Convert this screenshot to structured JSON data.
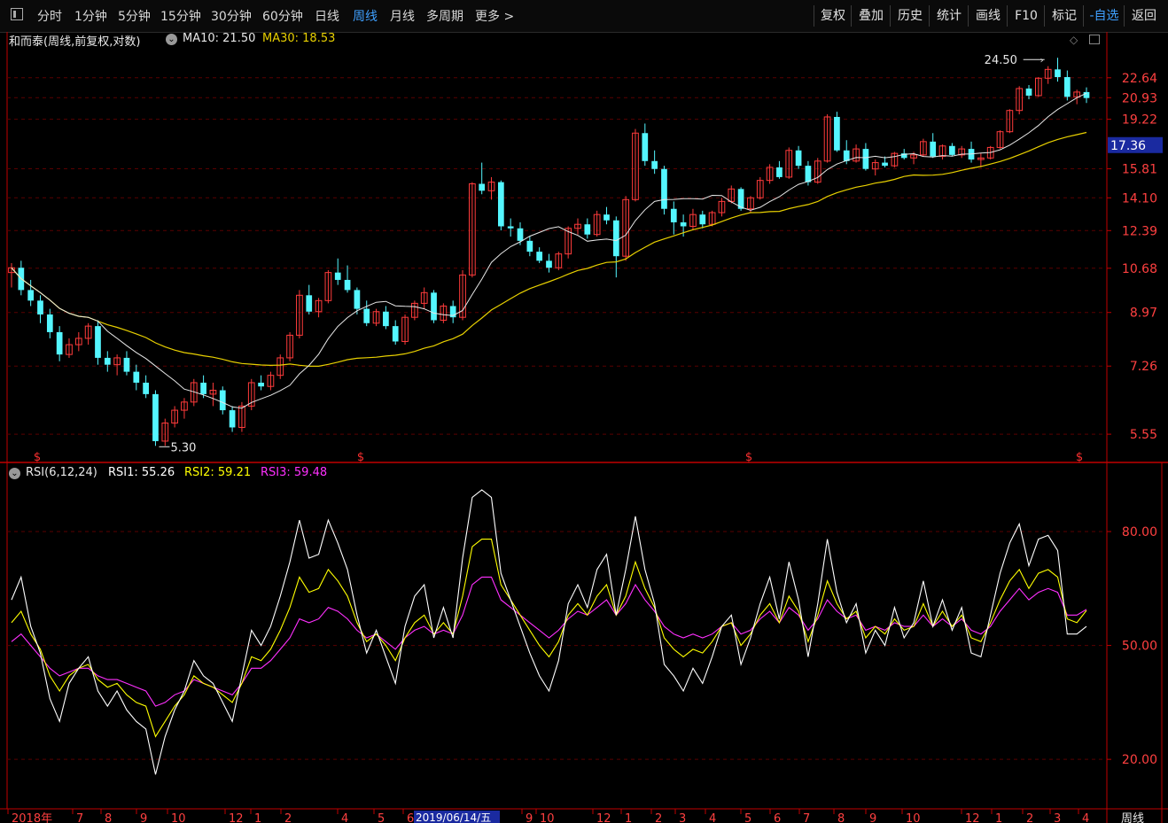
{
  "toolbar": {
    "periods": [
      "分时",
      "1分钟",
      "5分钟",
      "15分钟",
      "30分钟",
      "60分钟",
      "日线",
      "周线",
      "月线",
      "多周期",
      "更多 >"
    ],
    "active": "周线",
    "right": [
      "复权",
      "叠加",
      "历史",
      "统计",
      "画线",
      "F10",
      "标记",
      "-自选",
      "返回"
    ],
    "selected_right": "-自选"
  },
  "price_panel": {
    "title": "和而泰(周线,前复权,对数)",
    "ma10_label": "MA10: 21.50",
    "ma30_label": "MA30: 18.53",
    "current_price": "17.36",
    "high_label": "24.50",
    "low_label": "5.30",
    "marker_glyph": "$"
  },
  "rsi_panel": {
    "title": "RSI(6,12,24)",
    "rsi1_label": "RSI1: 55.26",
    "rsi2_label": "RSI2: 59.21",
    "rsi3_label": "RSI3: 59.48"
  },
  "x_axis": {
    "ticks": [
      "2018年",
      "7",
      "8",
      "9",
      "10",
      "12",
      "1",
      "2",
      "4",
      "5",
      "6",
      "9",
      "10",
      "12",
      "1",
      "2",
      "3",
      "4",
      "5",
      "6",
      "7",
      "8",
      "9",
      "10",
      "12",
      "1",
      "2",
      "3",
      "4"
    ],
    "cursor_label": "2019/06/14/五",
    "period_label": "周线"
  },
  "colors": {
    "up": "#ff3b3b",
    "down": "#54f6ff",
    "ma10": "#e8e8e8",
    "ma30": "#e8d000",
    "rsi1": "#ffffff",
    "rsi2": "#ffff00",
    "rsi3": "#ff30ff",
    "axis": "#c00000",
    "grid": "#5a0000"
  },
  "chart_data": [
    {
      "type": "candlestick",
      "title": "和而泰(周线,前复权,对数)",
      "scale": "log",
      "y_ticks": [
        22.64,
        20.93,
        19.22,
        17.36,
        15.81,
        14.1,
        12.39,
        10.68,
        8.97,
        7.26,
        5.55
      ],
      "ylim": [
        5.25,
        25.3
      ],
      "candles": [
        [
          10.5,
          10.9,
          9.9,
          10.7
        ],
        [
          10.7,
          11.0,
          9.6,
          9.8
        ],
        [
          9.8,
          10.2,
          9.2,
          9.4
        ],
        [
          9.4,
          9.6,
          8.6,
          8.9
        ],
        [
          8.9,
          9.1,
          8.1,
          8.3
        ],
        [
          8.3,
          8.5,
          7.4,
          7.6
        ],
        [
          7.6,
          8.1,
          7.5,
          7.9
        ],
        [
          7.9,
          8.3,
          7.7,
          8.1
        ],
        [
          8.1,
          8.6,
          7.9,
          8.5
        ],
        [
          8.5,
          8.7,
          7.3,
          7.5
        ],
        [
          7.5,
          7.7,
          7.1,
          7.3
        ],
        [
          7.3,
          7.6,
          7.0,
          7.5
        ],
        [
          7.5,
          7.7,
          7.0,
          7.1
        ],
        [
          7.1,
          7.3,
          6.6,
          6.8
        ],
        [
          6.8,
          7.0,
          6.4,
          6.5
        ],
        [
          6.5,
          6.6,
          5.3,
          5.4
        ],
        [
          5.4,
          5.9,
          5.3,
          5.8
        ],
        [
          5.8,
          6.2,
          5.7,
          6.1
        ],
        [
          6.1,
          6.4,
          5.9,
          6.3
        ],
        [
          6.3,
          6.9,
          6.2,
          6.8
        ],
        [
          6.8,
          7.0,
          6.4,
          6.5
        ],
        [
          6.5,
          6.8,
          6.2,
          6.6
        ],
        [
          6.6,
          6.7,
          6.0,
          6.1
        ],
        [
          6.1,
          6.2,
          5.6,
          5.7
        ],
        [
          5.7,
          6.3,
          5.6,
          6.2
        ],
        [
          6.2,
          6.9,
          6.1,
          6.8
        ],
        [
          6.8,
          7.0,
          6.6,
          6.7
        ],
        [
          6.7,
          7.1,
          6.6,
          7.0
        ],
        [
          7.0,
          7.6,
          6.9,
          7.5
        ],
        [
          7.5,
          8.3,
          7.4,
          8.2
        ],
        [
          8.2,
          9.8,
          8.1,
          9.6
        ],
        [
          9.6,
          10.0,
          8.9,
          9.0
        ],
        [
          9.0,
          9.5,
          8.8,
          9.4
        ],
        [
          9.4,
          10.6,
          9.3,
          10.5
        ],
        [
          10.5,
          11.1,
          10.0,
          10.2
        ],
        [
          10.2,
          10.8,
          9.7,
          9.8
        ],
        [
          9.8,
          9.9,
          8.9,
          9.1
        ],
        [
          9.1,
          9.4,
          8.5,
          8.6
        ],
        [
          8.6,
          9.1,
          8.5,
          9.0
        ],
        [
          9.0,
          9.2,
          8.4,
          8.5
        ],
        [
          8.5,
          8.7,
          7.9,
          8.0
        ],
        [
          8.0,
          8.9,
          7.9,
          8.8
        ],
        [
          8.8,
          9.4,
          8.7,
          9.3
        ],
        [
          9.3,
          9.9,
          9.1,
          9.7
        ],
        [
          9.7,
          9.8,
          8.6,
          8.7
        ],
        [
          8.7,
          9.3,
          8.6,
          9.2
        ],
        [
          9.2,
          9.4,
          8.6,
          8.8
        ],
        [
          8.8,
          10.6,
          8.7,
          10.4
        ],
        [
          10.4,
          15.0,
          10.3,
          14.9
        ],
        [
          14.9,
          16.2,
          14.3,
          14.5
        ],
        [
          14.5,
          15.3,
          14.0,
          15.0
        ],
        [
          15.0,
          15.1,
          12.4,
          12.6
        ],
        [
          12.6,
          13.0,
          12.1,
          12.5
        ],
        [
          12.5,
          12.8,
          11.7,
          11.9
        ],
        [
          11.9,
          12.1,
          11.2,
          11.4
        ],
        [
          11.4,
          11.6,
          10.9,
          11.0
        ],
        [
          11.0,
          11.3,
          10.5,
          10.7
        ],
        [
          10.7,
          11.4,
          10.6,
          11.3
        ],
        [
          11.3,
          12.6,
          11.1,
          12.5
        ],
        [
          12.5,
          13.0,
          12.2,
          12.7
        ],
        [
          12.7,
          13.0,
          12.0,
          12.2
        ],
        [
          12.2,
          13.4,
          12.1,
          13.2
        ],
        [
          13.2,
          13.6,
          12.7,
          12.9
        ],
        [
          12.9,
          13.1,
          10.3,
          11.2
        ],
        [
          11.2,
          14.2,
          11.0,
          14.0
        ],
        [
          14.0,
          18.5,
          13.9,
          18.2
        ],
        [
          18.2,
          18.9,
          16.0,
          16.3
        ],
        [
          16.3,
          17.0,
          15.5,
          15.8
        ],
        [
          15.8,
          16.0,
          13.2,
          13.5
        ],
        [
          13.5,
          13.9,
          12.2,
          12.8
        ],
        [
          12.8,
          13.2,
          12.1,
          12.6
        ],
        [
          12.6,
          13.5,
          12.4,
          13.2
        ],
        [
          13.2,
          13.4,
          12.5,
          12.7
        ],
        [
          12.7,
          13.4,
          12.6,
          13.3
        ],
        [
          13.3,
          14.1,
          13.1,
          13.9
        ],
        [
          13.9,
          14.8,
          13.8,
          14.6
        ],
        [
          14.6,
          14.7,
          13.4,
          13.5
        ],
        [
          13.5,
          14.2,
          13.3,
          14.1
        ],
        [
          14.1,
          15.3,
          14.0,
          15.1
        ],
        [
          15.1,
          16.1,
          14.9,
          15.9
        ],
        [
          15.9,
          16.3,
          15.2,
          15.3
        ],
        [
          15.3,
          17.2,
          15.2,
          17.0
        ],
        [
          17.0,
          17.3,
          15.8,
          16.0
        ],
        [
          16.0,
          16.3,
          14.8,
          15.0
        ],
        [
          15.0,
          16.5,
          14.9,
          16.3
        ],
        [
          16.3,
          19.6,
          16.2,
          19.4
        ],
        [
          19.4,
          19.8,
          16.9,
          17.0
        ],
        [
          17.0,
          17.7,
          16.1,
          16.3
        ],
        [
          16.3,
          17.4,
          16.2,
          17.1
        ],
        [
          17.1,
          17.5,
          15.7,
          15.8
        ],
        [
          15.8,
          16.4,
          15.4,
          16.2
        ],
        [
          16.2,
          16.6,
          15.9,
          16.0
        ],
        [
          16.0,
          16.9,
          15.9,
          16.8
        ],
        [
          16.8,
          17.1,
          16.4,
          16.5
        ],
        [
          16.5,
          16.9,
          16.1,
          16.7
        ],
        [
          16.7,
          17.8,
          16.6,
          17.6
        ],
        [
          17.6,
          18.2,
          16.5,
          16.6
        ],
        [
          16.6,
          17.4,
          16.4,
          17.3
        ],
        [
          17.3,
          17.5,
          16.6,
          16.7
        ],
        [
          16.7,
          17.3,
          16.5,
          17.1
        ],
        [
          17.1,
          17.6,
          16.2,
          16.4
        ],
        [
          16.4,
          16.8,
          15.9,
          16.5
        ],
        [
          16.5,
          17.3,
          16.4,
          17.2
        ],
        [
          17.2,
          18.4,
          17.1,
          18.3
        ],
        [
          18.3,
          20.0,
          18.2,
          19.9
        ],
        [
          19.9,
          21.9,
          19.6,
          21.7
        ],
        [
          21.7,
          22.0,
          20.8,
          21.1
        ],
        [
          21.1,
          22.7,
          21.0,
          22.6
        ],
        [
          22.6,
          23.7,
          22.1,
          23.4
        ],
        [
          23.4,
          24.5,
          22.3,
          22.7
        ],
        [
          22.7,
          23.3,
          20.7,
          21.0
        ],
        [
          21.0,
          21.6,
          20.4,
          21.4
        ],
        [
          21.4,
          21.8,
          20.5,
          20.9
        ]
      ]
    },
    {
      "type": "line",
      "title": "RSI(6,12,24)",
      "y_ticks": [
        80.0,
        50.0,
        20.0
      ],
      "ylim": [
        10,
        94
      ],
      "series": [
        {
          "name": "RSI1",
          "values": [
            62.0,
            68.0,
            55.0,
            48.0,
            36.0,
            30.0,
            40.0,
            44.0,
            47.0,
            38.0,
            34.0,
            38.0,
            33.0,
            30.0,
            28.0,
            16.0,
            26.0,
            33.0,
            38.0,
            46.0,
            42.0,
            40.0,
            35.0,
            30.0,
            42.0,
            54.0,
            50.0,
            55.0,
            63.0,
            72.0,
            83.0,
            73.0,
            74.0,
            83.0,
            77.0,
            70.0,
            58.0,
            48.0,
            54.0,
            47.0,
            40.0,
            55.0,
            63.0,
            66.0,
            52.0,
            60.0,
            52.0,
            73.0,
            89.0,
            91.0,
            89.0,
            69.0,
            62.0,
            55.0,
            48.0,
            42.0,
            38.0,
            46.0,
            61.0,
            66.0,
            60.0,
            70.0,
            74.0,
            58.0,
            70.0,
            84.0,
            70.0,
            61.0,
            45.0,
            42.0,
            38.0,
            44.0,
            40.0,
            47.0,
            55.0,
            58.0,
            45.0,
            52.0,
            61.0,
            68.0,
            57.0,
            72.0,
            62.0,
            47.0,
            61.0,
            78.0,
            64.0,
            56.0,
            61.0,
            48.0,
            54.0,
            50.0,
            60.0,
            52.0,
            56.0,
            67.0,
            55.0,
            62.0,
            54.0,
            60.0,
            48.0,
            47.0,
            58.0,
            69.0,
            77.0,
            82.0,
            71.0,
            78.0,
            79.0,
            75.0,
            53.0,
            53.0,
            55.0
          ]
        },
        {
          "name": "RSI2",
          "values": [
            56.0,
            59.0,
            53.0,
            49.0,
            42.0,
            38.0,
            42.0,
            44.0,
            45.0,
            41.0,
            39.0,
            40.0,
            37.0,
            35.0,
            34.0,
            26.0,
            30.0,
            34.0,
            37.0,
            42.0,
            40.0,
            39.0,
            37.0,
            35.0,
            40.0,
            47.0,
            46.0,
            49.0,
            54.0,
            60.0,
            68.0,
            64.0,
            65.0,
            70.0,
            67.0,
            63.0,
            56.0,
            51.0,
            53.0,
            50.0,
            46.0,
            52.0,
            56.0,
            58.0,
            53.0,
            56.0,
            53.0,
            63.0,
            76.0,
            78.0,
            78.0,
            66.0,
            62.0,
            58.0,
            54.0,
            50.0,
            47.0,
            51.0,
            58.0,
            61.0,
            58.0,
            63.0,
            66.0,
            58.0,
            63.0,
            72.0,
            65.0,
            60.0,
            52.0,
            49.0,
            47.0,
            49.0,
            48.0,
            51.0,
            55.0,
            56.0,
            50.0,
            53.0,
            58.0,
            61.0,
            56.0,
            63.0,
            59.0,
            51.0,
            58.0,
            67.0,
            61.0,
            57.0,
            59.0,
            52.0,
            55.0,
            53.0,
            57.0,
            54.0,
            55.0,
            61.0,
            55.0,
            59.0,
            55.0,
            58.0,
            52.0,
            51.0,
            56.0,
            62.0,
            67.0,
            70.0,
            65.0,
            69.0,
            70.0,
            68.0,
            57.0,
            56.0,
            59.21
          ]
        },
        {
          "name": "RSI3",
          "values": [
            51.0,
            53.0,
            50.0,
            47.0,
            44.0,
            42.0,
            43.0,
            44.0,
            44.0,
            42.0,
            41.0,
            41.0,
            40.0,
            39.0,
            38.0,
            34.0,
            35.0,
            37.0,
            38.0,
            41.0,
            40.0,
            39.0,
            38.0,
            37.0,
            40.0,
            44.0,
            44.0,
            46.0,
            49.0,
            52.0,
            57.0,
            56.0,
            57.0,
            60.0,
            59.0,
            57.0,
            54.0,
            52.0,
            53.0,
            51.0,
            49.0,
            52.0,
            54.0,
            55.0,
            53.0,
            54.0,
            53.0,
            58.0,
            66.0,
            68.0,
            68.0,
            62.0,
            60.0,
            58.0,
            56.0,
            54.0,
            52.0,
            54.0,
            57.0,
            59.0,
            58.0,
            60.0,
            62.0,
            58.0,
            61.0,
            66.0,
            62.0,
            59.0,
            55.0,
            53.0,
            52.0,
            53.0,
            52.0,
            53.0,
            55.0,
            56.0,
            53.0,
            54.0,
            57.0,
            59.0,
            56.0,
            60.0,
            58.0,
            54.0,
            57.0,
            62.0,
            59.0,
            57.0,
            58.0,
            54.0,
            55.0,
            54.0,
            56.0,
            55.0,
            55.0,
            58.0,
            55.0,
            57.0,
            55.0,
            57.0,
            54.0,
            53.0,
            55.0,
            59.0,
            62.0,
            65.0,
            62.0,
            64.0,
            65.0,
            64.0,
            58.0,
            58.0,
            59.48
          ]
        }
      ]
    }
  ]
}
